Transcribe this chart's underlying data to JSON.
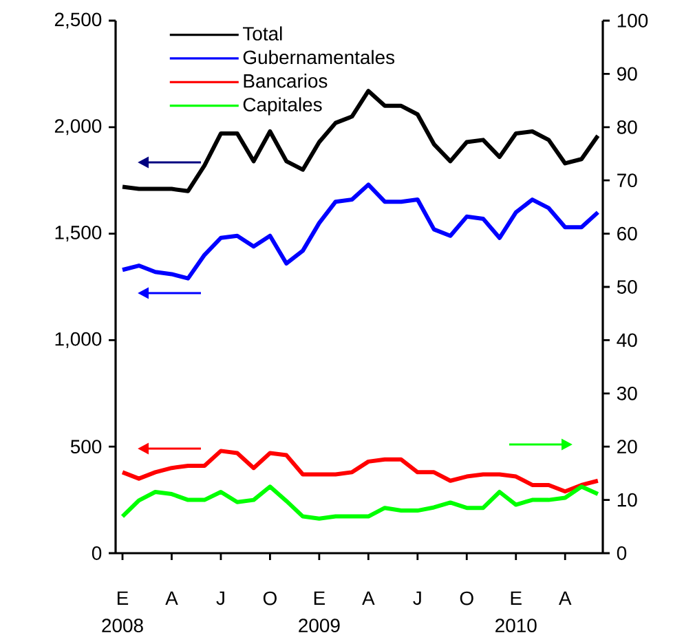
{
  "chart_data": {
    "type": "line",
    "categories": [
      "E 2008",
      null,
      null,
      "A",
      null,
      null,
      "J",
      null,
      null,
      "O",
      null,
      null,
      "E 2009",
      null,
      null,
      "A",
      null,
      null,
      "J",
      null,
      null,
      "O",
      null,
      null,
      "E 2010",
      null,
      null,
      "A",
      null,
      null
    ],
    "series": [
      {
        "name": "Total",
        "color": "#000000",
        "values": [
          1720,
          1710,
          1710,
          1710,
          1700,
          1820,
          1970,
          1970,
          1840,
          1980,
          1840,
          1800,
          1930,
          2020,
          2050,
          2170,
          2100,
          2100,
          2060,
          1920,
          1840,
          1930,
          1940,
          1860,
          1970,
          1980,
          1940,
          1830,
          1850,
          1960
        ]
      },
      {
        "name": "Gubernamentales",
        "color": "#0000ff",
        "values": [
          1330,
          1350,
          1320,
          1310,
          1290,
          1400,
          1480,
          1490,
          1440,
          1490,
          1360,
          1420,
          1550,
          1650,
          1660,
          1730,
          1650,
          1650,
          1660,
          1520,
          1490,
          1580,
          1570,
          1480,
          1600,
          1660,
          1620,
          1530,
          1530,
          1600
        ]
      },
      {
        "name": "Bancarios",
        "color": "#ff0000",
        "values": [
          380,
          350,
          380,
          400,
          410,
          410,
          480,
          470,
          400,
          470,
          460,
          370,
          370,
          370,
          380,
          430,
          440,
          440,
          380,
          380,
          340,
          360,
          370,
          370,
          360,
          320,
          320,
          290,
          320,
          340
        ]
      },
      {
        "name": "Capitales",
        "color": "#00ff00",
        "axis": "y2",
        "values": [
          6.9,
          9.9,
          11.5,
          11.1,
          10.0,
          10.0,
          11.5,
          9.6,
          10.0,
          12.5,
          9.8,
          6.9,
          6.5,
          6.9,
          6.9,
          6.9,
          8.5,
          8.0,
          8.0,
          8.6,
          9.5,
          8.5,
          8.5,
          11.5,
          9.1,
          10.0,
          10.0,
          10.4,
          12.5,
          11.1
        ]
      }
    ],
    "ylim": [
      0,
      2500
    ],
    "yticks": [
      0,
      500,
      {
        "value": 1000,
        "label": "1,000"
      },
      {
        "value": 1500,
        "label": "1,500"
      },
      {
        "value": 2000,
        "label": "2,000"
      },
      {
        "value": 2500,
        "label": "2,500"
      }
    ],
    "y2lim": [
      0,
      100
    ],
    "y2ticks": [
      0,
      10,
      20,
      30,
      40,
      50,
      60,
      70,
      80,
      90,
      100
    ],
    "legend": "top left"
  }
}
